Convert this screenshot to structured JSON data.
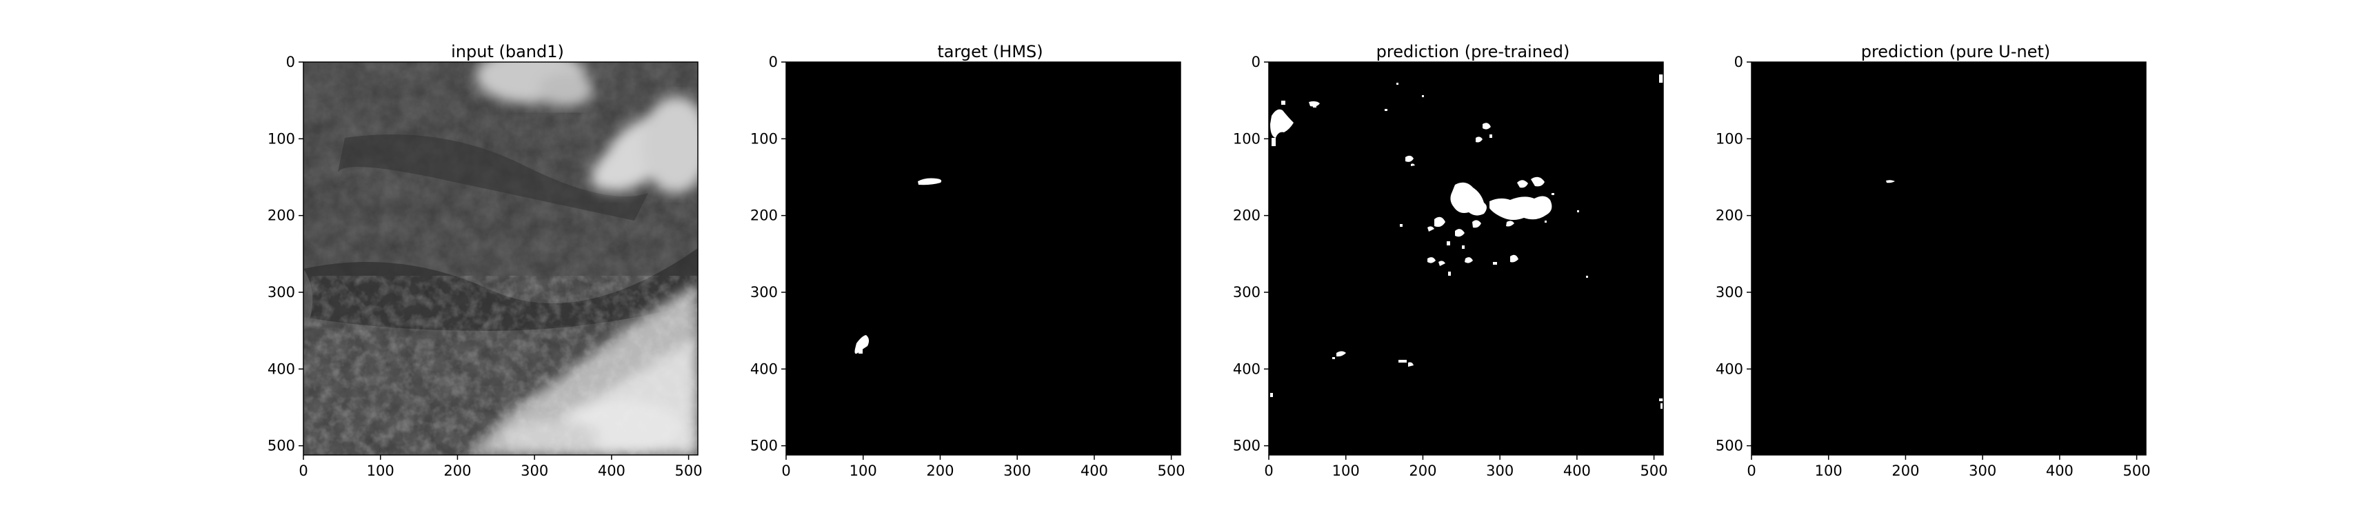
{
  "figure": {
    "panels": [
      {
        "id": "input",
        "title": "input (band1)",
        "image_kind": "satellite-grayscale",
        "xticks": [
          "0",
          "100",
          "200",
          "300",
          "400",
          "500"
        ],
        "yticks": [
          "0",
          "100",
          "200",
          "300",
          "400",
          "500"
        ]
      },
      {
        "id": "target",
        "title": "target (HMS)",
        "image_kind": "binary-mask",
        "xticks": [
          "0",
          "100",
          "200",
          "300",
          "400",
          "500"
        ],
        "yticks": [
          "0",
          "100",
          "200",
          "300",
          "400",
          "500"
        ]
      },
      {
        "id": "pretrained",
        "title": "prediction (pre-trained)",
        "image_kind": "binary-mask",
        "xticks": [
          "0",
          "100",
          "200",
          "300",
          "400",
          "500"
        ],
        "yticks": [
          "0",
          "100",
          "200",
          "300",
          "400",
          "500"
        ]
      },
      {
        "id": "unet",
        "title": "prediction (pure U-net)",
        "image_kind": "binary-mask",
        "xticks": [
          "0",
          "100",
          "200",
          "300",
          "400",
          "500"
        ],
        "yticks": [
          "0",
          "100",
          "200",
          "300",
          "400",
          "500"
        ]
      }
    ],
    "colors": {
      "background": "#ffffff",
      "mask_background": "#000000",
      "mask_foreground": "#ffffff",
      "satellite_dark": "#3a3a3a",
      "cloud": "#d9d9d9"
    }
  }
}
